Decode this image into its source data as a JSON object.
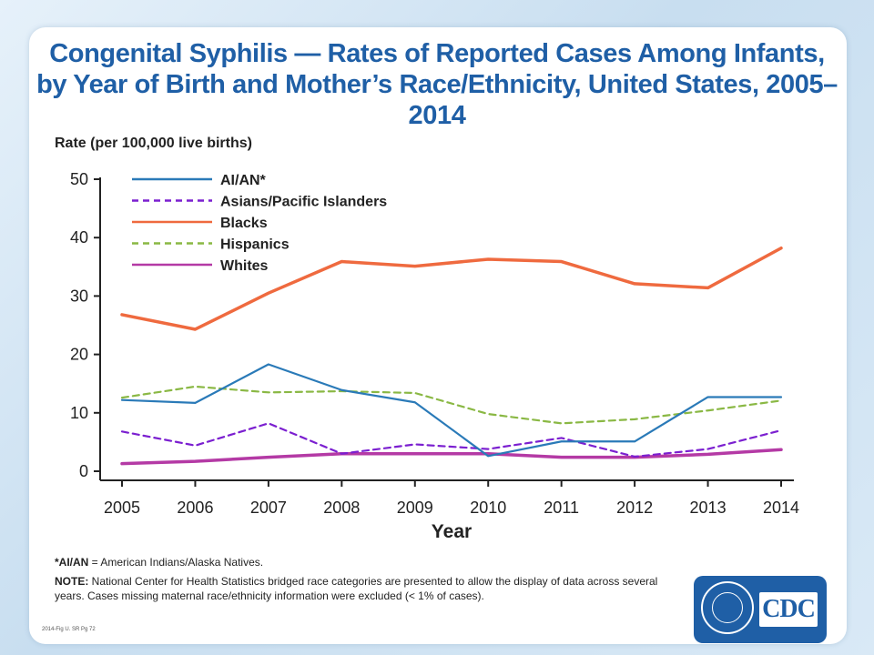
{
  "slide": {
    "title": "Congenital Syphilis — Rates of Reported Cases Among Infants, by Year of Birth and Mother’s Race/Ethnicity, United States, 2005–2014",
    "footnote_term": "*AI/AN",
    "footnote_text": " = American Indians/Alaska Natives.",
    "note_label": "NOTE:",
    "note_text": " National Center for Health Statistics bridged race categories are presented to allow the display of data across several years. Cases missing maternal race/ethnicity information were excluded (< 1% of cases).",
    "source_tag": "2014-Fig U. SR Pg 72",
    "logo_text": "CDC"
  },
  "chart_data": {
    "type": "line",
    "ylabel": "Rate (per 100,000 live births)",
    "xlabel": "Year",
    "x": [
      "2005",
      "2006",
      "2007",
      "2008",
      "2009",
      "2010",
      "2011",
      "2012",
      "2013",
      "2014"
    ],
    "ylim": [
      0,
      50
    ],
    "yticks": [
      0,
      10,
      20,
      30,
      40,
      50
    ],
    "legend_position": "top-left",
    "grid": false,
    "series": [
      {
        "name": "AI/AN*",
        "color": "#2a7ab8",
        "dashed": false,
        "values": [
          12.2,
          11.7,
          18.3,
          13.9,
          11.8,
          2.6,
          5.1,
          5.1,
          12.7,
          12.7
        ]
      },
      {
        "name": "Asians/Pacific Islanders",
        "color": "#7b1fd0",
        "dashed": true,
        "values": [
          6.8,
          4.4,
          8.2,
          3.0,
          4.6,
          3.8,
          5.7,
          2.5,
          3.8,
          7.0
        ]
      },
      {
        "name": "Blacks",
        "color": "#ef6a3f",
        "dashed": false,
        "values": [
          26.8,
          24.3,
          30.5,
          35.9,
          35.1,
          36.3,
          35.9,
          32.1,
          31.4,
          38.2
        ]
      },
      {
        "name": "Hispanics",
        "color": "#8ab844",
        "dashed": true,
        "values": [
          12.6,
          14.5,
          13.5,
          13.7,
          13.4,
          9.8,
          8.2,
          8.9,
          10.4,
          12.1
        ]
      },
      {
        "name": "Whites",
        "color": "#b43aa5",
        "dashed": false,
        "values": [
          1.3,
          1.7,
          2.4,
          3.0,
          3.0,
          3.0,
          2.4,
          2.4,
          2.9,
          3.7
        ]
      }
    ]
  }
}
